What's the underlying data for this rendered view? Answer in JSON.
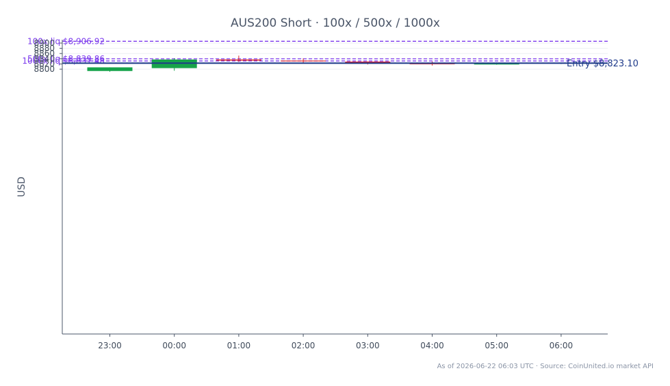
{
  "chart_data": {
    "type": "candlestick",
    "title": "AUS200 Short · 100x / 500x / 1000x",
    "ylabel": "USD",
    "xlabel": "",
    "ylim": [
      7785,
      8913
    ],
    "y_ticks": [
      8800,
      8820,
      8840,
      8860,
      8880,
      8900
    ],
    "x_ticks": [
      "23:00",
      "00:00",
      "01:00",
      "02:00",
      "03:00",
      "04:00",
      "05:00",
      "06:00"
    ],
    "candles": [
      {
        "time": "23:00",
        "open": 8793,
        "high": 8807,
        "low": 8790,
        "close": 8807
      },
      {
        "time": "00:00",
        "open": 8804,
        "high": 8842,
        "low": 8794,
        "close": 8837
      },
      {
        "time": "01:00",
        "open": 8837,
        "high": 8852,
        "low": 8828,
        "close": 8833
      },
      {
        "time": "02:00",
        "open": 8833,
        "high": 8841,
        "low": 8825,
        "close": 8830
      },
      {
        "time": "03:00",
        "open": 8829,
        "high": 8830,
        "low": 8818,
        "close": 8821
      },
      {
        "time": "04:00",
        "open": 8821,
        "high": 8829,
        "low": 8814,
        "close": 8819
      },
      {
        "time": "05:00",
        "open": 8818,
        "high": 8826,
        "low": 8817,
        "close": 8823
      },
      {
        "time": "06:00",
        "open": 8823,
        "high": 8824,
        "low": 8820,
        "close": 8823
      }
    ],
    "reference_lines": [
      {
        "label": "100x liq $8,906.92",
        "value": 8906.92,
        "style": "dashed"
      },
      {
        "label": "500x liq $8,839.86",
        "value": 8839.86,
        "style": "dashed"
      },
      {
        "label": "1000x liq $8,831.48",
        "value": 8831.48,
        "style": "dashed"
      }
    ],
    "entry_line": {
      "label": "Entry $8,823.10",
      "value": 8823.1
    },
    "colors": {
      "up": "#16a34a",
      "down": "#dc2626",
      "liq": "#7c3aed",
      "entry": "#1e3a8a",
      "axis": "#4a5568",
      "grid": "#eceff3"
    },
    "grid": true
  },
  "footnote": "As of 2026-06-22 06:03 UTC · Source: CoinUnited.io market API"
}
